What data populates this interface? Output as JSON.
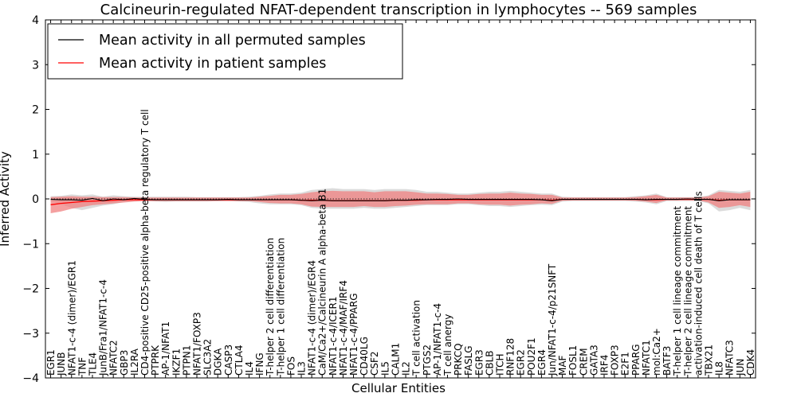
{
  "chart_data": {
    "type": "line",
    "title": "Calcineurin-regulated NFAT-dependent transcription in lymphocytes -- 569 samples",
    "xlabel": "Cellular Entities",
    "ylabel": "Inferred Activity",
    "ylim": [
      -4,
      4
    ],
    "yticks": [
      -4,
      -3,
      -2,
      -1,
      0,
      1,
      2,
      3,
      4
    ],
    "legend": {
      "placement": "top-left",
      "entries": [
        {
          "label": "Mean activity in all permuted samples",
          "color": "#000000"
        },
        {
          "label": "Mean activity in patient samples",
          "color": "#ff0000"
        }
      ]
    },
    "categories": [
      "EGR1",
      "JUNB",
      "NFAT1-c-4 (dimer)/EGR1",
      "TNF",
      "TLE4",
      "JunB/Fra1/NFAT1-c-4",
      "NFATC2",
      "GBP3",
      "IL2RA",
      "CD4-positive CD25-positive alpha-beta regulatory T cell",
      "PTPRK",
      "AP-1/NFAT1",
      "IKZF1",
      "PTPN1",
      "NFAT1/FOXP3",
      "SLC3A2",
      "DGKA",
      "CASP3",
      "CTLA4",
      "IL4",
      "IFNG",
      "T-helper 2 cell differentiation",
      "T-helper 1 cell differentiation",
      "FOS",
      "IL3",
      "NFAT1-c-4 (dimer)/EGR4",
      "CaM/Ca2+/Calcineurin A alpha-beta B1",
      "NFAT1-c-4/ICER1",
      "NFAT1-c-4/MAF/IRF4",
      "NFAT1-c-4/PPARG",
      "CD40LG",
      "CSF2",
      "IL5",
      "CALM1",
      "IL2",
      "T cell activation",
      "PTGS2",
      "AP-1/NFAT1-c-4",
      "T cell anergy",
      "PRKCQ",
      "FASLG",
      "EGR3",
      "CBLB",
      "ITCH",
      "RNF128",
      "EGR2",
      "POU2F1",
      "EGR4",
      "Jun/NFAT1-c-4/p21SNFT",
      "MAF",
      "FOSL1",
      "CREM",
      "GATA3",
      "IRF4",
      "FOXP3",
      "E2F1",
      "PPARG",
      "NFATC1",
      "mol:Ca2+",
      "BATF3",
      "T-helper 1 cell lineage commitment",
      "T-helper 2 cell lineage commitment",
      "activation-induced cell death of T cells",
      "TBX21",
      "IL8",
      "NFATC3",
      "JUN",
      "CDK4"
    ],
    "series": [
      {
        "name": "Mean activity in all permuted samples",
        "color": "#000000",
        "values": [
          -0.01,
          -0.02,
          -0.02,
          -0.03,
          0.01,
          -0.04,
          0,
          -0.02,
          0.01,
          -0.01,
          -0.02,
          -0.02,
          -0.02,
          -0.02,
          -0.02,
          -0.02,
          -0.02,
          -0.01,
          -0.02,
          -0.02,
          -0.02,
          -0.02,
          -0.02,
          -0.02,
          -0.03,
          -0.04,
          -0.03,
          -0.04,
          -0.04,
          -0.04,
          -0.04,
          -0.04,
          -0.04,
          -0.03,
          -0.03,
          -0.02,
          -0.02,
          -0.01,
          -0.01,
          0,
          -0.01,
          -0.01,
          -0.01,
          -0.01,
          -0.01,
          -0.01,
          -0.01,
          -0.02,
          -0.04,
          -0.01,
          -0.01,
          -0.01,
          -0.01,
          -0.01,
          -0.01,
          -0.01,
          -0.01,
          -0.02,
          -0.01,
          -0.01,
          -0.01,
          0,
          -0.01,
          -0.01,
          -0.04,
          -0.02,
          -0.02,
          -0.02
        ],
        "band": {
          "color": "#cccccc",
          "lower": [
            -0.06,
            -0.12,
            -0.2,
            -0.25,
            -0.2,
            -0.15,
            -0.12,
            -0.07,
            -0.05,
            -0.05,
            -0.06,
            -0.07,
            -0.06,
            -0.06,
            -0.06,
            -0.06,
            -0.05,
            -0.05,
            -0.06,
            -0.07,
            -0.1,
            -0.12,
            -0.12,
            -0.12,
            -0.14,
            -0.2,
            -0.22,
            -0.22,
            -0.22,
            -0.22,
            -0.2,
            -0.22,
            -0.22,
            -0.2,
            -0.18,
            -0.16,
            -0.14,
            -0.14,
            -0.14,
            -0.12,
            -0.12,
            -0.14,
            -0.16,
            -0.16,
            -0.18,
            -0.16,
            -0.14,
            -0.13,
            -0.14,
            -0.06,
            -0.05,
            -0.05,
            -0.05,
            -0.05,
            -0.05,
            -0.05,
            -0.06,
            -0.08,
            -0.12,
            -0.05,
            -0.05,
            -0.05,
            -0.05,
            -0.1,
            -0.28,
            -0.25,
            -0.2,
            -0.25
          ],
          "upper": [
            0.06,
            0.07,
            0.1,
            0.08,
            0.1,
            0.05,
            0.08,
            0.06,
            0.05,
            0.05,
            0.05,
            0.05,
            0.05,
            0.05,
            0.04,
            0.04,
            0.04,
            0.04,
            0.04,
            0.05,
            0.07,
            0.1,
            0.12,
            0.12,
            0.14,
            0.2,
            0.22,
            0.24,
            0.22,
            0.22,
            0.22,
            0.2,
            0.22,
            0.22,
            0.22,
            0.2,
            0.16,
            0.16,
            0.14,
            0.12,
            0.12,
            0.14,
            0.16,
            0.16,
            0.18,
            0.16,
            0.14,
            0.12,
            0.12,
            0.05,
            0.04,
            0.04,
            0.04,
            0.04,
            0.04,
            0.04,
            0.06,
            0.08,
            0.12,
            0.04,
            0.04,
            0.04,
            0.04,
            0.08,
            0.2,
            0.18,
            0.16,
            0.2
          ]
        }
      },
      {
        "name": "Mean activity in patient samples",
        "color": "#ff0000",
        "values": [
          -0.13,
          -0.1,
          -0.08,
          -0.06,
          -0.05,
          -0.04,
          -0.03,
          -0.02,
          -0.02,
          -0.02,
          -0.02,
          -0.02,
          -0.02,
          -0.02,
          -0.02,
          -0.02,
          -0.02,
          -0.02,
          -0.02,
          -0.02,
          -0.02,
          -0.02,
          -0.02,
          -0.02,
          -0.03,
          -0.03,
          -0.03,
          -0.04,
          -0.04,
          -0.04,
          -0.04,
          -0.04,
          -0.04,
          -0.03,
          -0.03,
          -0.03,
          -0.02,
          -0.02,
          -0.02,
          -0.02,
          -0.02,
          -0.02,
          -0.02,
          -0.02,
          -0.02,
          -0.02,
          -0.02,
          -0.02,
          -0.03,
          -0.01,
          -0.01,
          -0.01,
          -0.01,
          -0.01,
          -0.01,
          -0.01,
          -0.01,
          -0.02,
          -0.02,
          -0.01,
          -0.01,
          -0.01,
          -0.01,
          -0.01,
          -0.03,
          -0.02,
          -0.02,
          -0.02
        ],
        "band": {
          "color": "#f08080",
          "lower": [
            -0.32,
            -0.28,
            -0.22,
            -0.18,
            -0.14,
            -0.12,
            -0.1,
            -0.08,
            -0.06,
            -0.05,
            -0.05,
            -0.05,
            -0.05,
            -0.05,
            -0.05,
            -0.05,
            -0.05,
            -0.05,
            -0.05,
            -0.05,
            -0.07,
            -0.09,
            -0.1,
            -0.1,
            -0.12,
            -0.17,
            -0.18,
            -0.18,
            -0.18,
            -0.18,
            -0.16,
            -0.18,
            -0.18,
            -0.16,
            -0.15,
            -0.13,
            -0.12,
            -0.12,
            -0.12,
            -0.1,
            -0.1,
            -0.12,
            -0.13,
            -0.13,
            -0.15,
            -0.13,
            -0.12,
            -0.1,
            -0.11,
            -0.04,
            -0.03,
            -0.03,
            -0.03,
            -0.03,
            -0.03,
            -0.03,
            -0.04,
            -0.06,
            -0.09,
            -0.03,
            -0.03,
            -0.03,
            -0.03,
            -0.08,
            -0.2,
            -0.18,
            -0.14,
            -0.18
          ],
          "upper": [
            0.04,
            0.05,
            0.06,
            0.05,
            0.05,
            0.04,
            0.04,
            0.04,
            0.03,
            0.03,
            0.03,
            0.03,
            0.03,
            0.03,
            0.03,
            0.03,
            0.03,
            0.03,
            0.03,
            0.03,
            0.05,
            0.07,
            0.09,
            0.09,
            0.11,
            0.15,
            0.17,
            0.18,
            0.17,
            0.17,
            0.17,
            0.15,
            0.17,
            0.17,
            0.17,
            0.15,
            0.12,
            0.12,
            0.11,
            0.09,
            0.09,
            0.11,
            0.12,
            0.12,
            0.14,
            0.12,
            0.11,
            0.09,
            0.09,
            0.03,
            0.03,
            0.03,
            0.03,
            0.03,
            0.03,
            0.03,
            0.04,
            0.06,
            0.09,
            0.03,
            0.03,
            0.03,
            0.03,
            0.06,
            0.16,
            0.14,
            0.12,
            0.16
          ]
        }
      }
    ]
  }
}
